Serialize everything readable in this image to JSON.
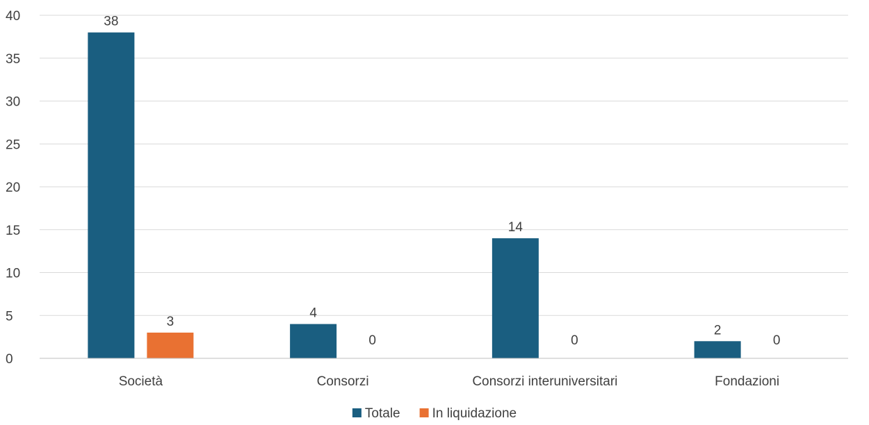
{
  "chart_data": {
    "type": "bar",
    "title": "",
    "xlabel": "",
    "ylabel": "",
    "categories": [
      "Società",
      "Consorzi",
      "Consorzi interuniversitari",
      "Fondazioni"
    ],
    "series": [
      {
        "name": "Totale",
        "values": [
          38,
          4,
          14,
          2
        ],
        "color": "#1a5e80"
      },
      {
        "name": "In liquidazione",
        "values": [
          3,
          0,
          0,
          0
        ],
        "color": "#e97132"
      }
    ],
    "ylim": [
      0,
      40
    ],
    "yticks": [
      0,
      5,
      10,
      15,
      20,
      25,
      30,
      35,
      40
    ],
    "grid": true,
    "legend": "bottom",
    "data_labels": true
  }
}
